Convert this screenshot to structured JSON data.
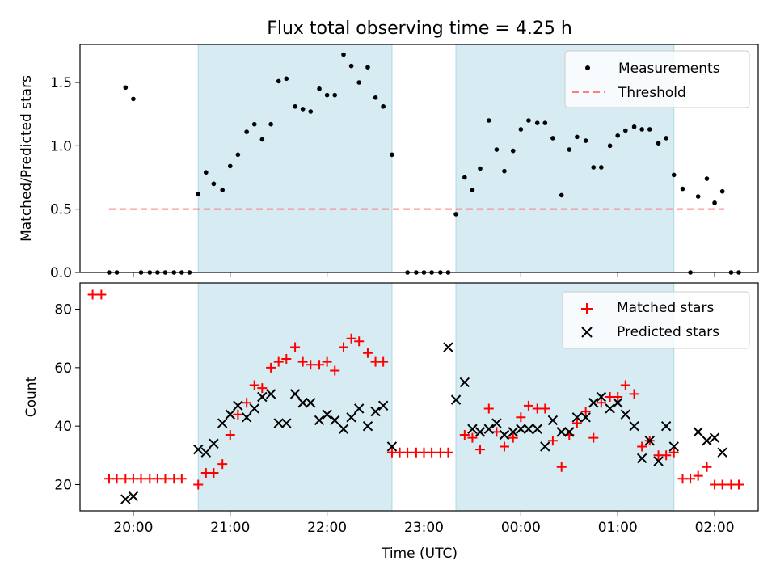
{
  "figure": {
    "title": "Flux total observing time = 4.25 h"
  },
  "chart_data": [
    {
      "type": "scatter",
      "panel": "top",
      "xlabel": "",
      "ylabel": "Matched/Predicted stars",
      "xlim_hours": [
        19.45,
        26.25
      ],
      "ylim": [
        0,
        1.8
      ],
      "yticks": [
        0.0,
        0.5,
        1.0,
        1.5
      ],
      "ytick_labels": [
        "0.0",
        "0.5",
        "1.0",
        "1.5"
      ],
      "xticks": [
        20,
        21,
        22,
        23,
        24,
        25,
        26
      ],
      "xtick_labels": [
        "",
        "",
        "",
        "",
        "",
        "",
        ""
      ],
      "shaded_intervals_hours": [
        [
          20.67,
          22.67
        ],
        [
          23.33,
          25.58
        ]
      ],
      "shade_color": "#add8e6",
      "legend": {
        "location": "top-right",
        "entries": [
          "Measurements",
          "Threshold"
        ]
      },
      "series": [
        {
          "name": "Measurements",
          "marker": "dot",
          "color": "#000000",
          "points": [
            [
              19.75,
              0
            ],
            [
              19.83,
              0
            ],
            [
              19.92,
              1.46
            ],
            [
              20.0,
              1.37
            ],
            [
              20.08,
              0
            ],
            [
              20.17,
              0
            ],
            [
              20.25,
              0
            ],
            [
              20.33,
              0
            ],
            [
              20.42,
              0
            ],
            [
              20.5,
              0
            ],
            [
              20.58,
              0
            ],
            [
              20.67,
              0.62
            ],
            [
              20.75,
              0.79
            ],
            [
              20.83,
              0.7
            ],
            [
              20.92,
              0.65
            ],
            [
              21.0,
              0.84
            ],
            [
              21.08,
              0.93
            ],
            [
              21.17,
              1.11
            ],
            [
              21.25,
              1.17
            ],
            [
              21.33,
              1.05
            ],
            [
              21.42,
              1.17
            ],
            [
              21.5,
              1.51
            ],
            [
              21.58,
              1.53
            ],
            [
              21.67,
              1.31
            ],
            [
              21.75,
              1.29
            ],
            [
              21.83,
              1.27
            ],
            [
              21.92,
              1.45
            ],
            [
              22.0,
              1.4
            ],
            [
              22.08,
              1.4
            ],
            [
              22.17,
              1.72
            ],
            [
              22.25,
              1.63
            ],
            [
              22.33,
              1.5
            ],
            [
              22.42,
              1.62
            ],
            [
              22.5,
              1.38
            ],
            [
              22.58,
              1.31
            ],
            [
              22.67,
              0.93
            ],
            [
              22.83,
              0
            ],
            [
              22.92,
              0
            ],
            [
              23.0,
              0
            ],
            [
              23.08,
              0
            ],
            [
              23.17,
              0
            ],
            [
              23.25,
              0
            ],
            [
              23.33,
              0.46
            ],
            [
              23.42,
              0.75
            ],
            [
              23.5,
              0.65
            ],
            [
              23.58,
              0.82
            ],
            [
              23.67,
              1.2
            ],
            [
              23.75,
              0.97
            ],
            [
              23.83,
              0.8
            ],
            [
              23.92,
              0.96
            ],
            [
              24.0,
              1.13
            ],
            [
              24.08,
              1.2
            ],
            [
              24.17,
              1.18
            ],
            [
              24.25,
              1.18
            ],
            [
              24.33,
              1.06
            ],
            [
              24.42,
              0.61
            ],
            [
              24.5,
              0.97
            ],
            [
              24.58,
              1.07
            ],
            [
              24.67,
              1.04
            ],
            [
              24.75,
              0.83
            ],
            [
              24.83,
              0.83
            ],
            [
              24.92,
              1.0
            ],
            [
              25.0,
              1.08
            ],
            [
              25.08,
              1.12
            ],
            [
              25.17,
              1.15
            ],
            [
              25.25,
              1.13
            ],
            [
              25.33,
              1.13
            ],
            [
              25.42,
              1.02
            ],
            [
              25.5,
              1.06
            ],
            [
              25.58,
              0.77
            ],
            [
              25.67,
              0.66
            ],
            [
              25.75,
              0
            ],
            [
              25.83,
              0.6
            ],
            [
              25.92,
              0.74
            ],
            [
              26.0,
              0.55
            ],
            [
              26.08,
              0.64
            ],
            [
              26.17,
              0
            ],
            [
              26.25,
              0
            ]
          ]
        },
        {
          "name": "Threshold",
          "style": "dashed",
          "color": "#ff7f7f",
          "points": [
            [
              19.75,
              0.5
            ],
            [
              26.1,
              0.5
            ]
          ]
        }
      ]
    },
    {
      "type": "scatter",
      "panel": "bottom",
      "xlabel": "Time (UTC)",
      "ylabel": "Count",
      "xlim_hours": [
        19.45,
        26.25
      ],
      "ylim": [
        11,
        89
      ],
      "yticks": [
        20,
        40,
        60,
        80
      ],
      "ytick_labels": [
        "20",
        "40",
        "60",
        "80"
      ],
      "xticks": [
        20,
        21,
        22,
        23,
        24,
        25,
        26
      ],
      "xtick_labels": [
        "20:00",
        "21:00",
        "22:00",
        "23:00",
        "00:00",
        "01:00",
        "02:00"
      ],
      "shaded_intervals_hours": [
        [
          20.67,
          22.67
        ],
        [
          23.33,
          25.58
        ]
      ],
      "shade_color": "#add8e6",
      "legend": {
        "location": "top-right",
        "entries": [
          "Matched stars",
          "Predicted stars"
        ]
      },
      "series": [
        {
          "name": "Matched stars",
          "marker": "plus",
          "color": "#ff0000",
          "points": [
            [
              19.58,
              85
            ],
            [
              19.67,
              85
            ],
            [
              19.75,
              22
            ],
            [
              19.83,
              22
            ],
            [
              19.92,
              22
            ],
            [
              20.0,
              22
            ],
            [
              20.08,
              22
            ],
            [
              20.17,
              22
            ],
            [
              20.25,
              22
            ],
            [
              20.33,
              22
            ],
            [
              20.42,
              22
            ],
            [
              20.5,
              22
            ],
            [
              20.67,
              20
            ],
            [
              20.75,
              24
            ],
            [
              20.83,
              24
            ],
            [
              20.92,
              27
            ],
            [
              21.0,
              37
            ],
            [
              21.08,
              44
            ],
            [
              21.17,
              48
            ],
            [
              21.25,
              54
            ],
            [
              21.33,
              53
            ],
            [
              21.42,
              60
            ],
            [
              21.5,
              62
            ],
            [
              21.58,
              63
            ],
            [
              21.67,
              67
            ],
            [
              21.75,
              62
            ],
            [
              21.83,
              61
            ],
            [
              21.92,
              61
            ],
            [
              22.0,
              62
            ],
            [
              22.08,
              59
            ],
            [
              22.17,
              67
            ],
            [
              22.25,
              70
            ],
            [
              22.33,
              69
            ],
            [
              22.42,
              65
            ],
            [
              22.5,
              62
            ],
            [
              22.58,
              62
            ],
            [
              22.67,
              31
            ],
            [
              22.75,
              31
            ],
            [
              22.83,
              31
            ],
            [
              22.92,
              31
            ],
            [
              23.0,
              31
            ],
            [
              23.08,
              31
            ],
            [
              23.17,
              31
            ],
            [
              23.25,
              31
            ],
            [
              23.42,
              37
            ],
            [
              23.5,
              36
            ],
            [
              23.58,
              32
            ],
            [
              23.67,
              46
            ],
            [
              23.75,
              38
            ],
            [
              23.83,
              33
            ],
            [
              23.92,
              36
            ],
            [
              24.0,
              43
            ],
            [
              24.08,
              47
            ],
            [
              24.17,
              46
            ],
            [
              24.25,
              46
            ],
            [
              24.33,
              35
            ],
            [
              24.42,
              26
            ],
            [
              24.5,
              37
            ],
            [
              24.58,
              41
            ],
            [
              24.67,
              45
            ],
            [
              24.75,
              36
            ],
            [
              24.83,
              48
            ],
            [
              24.92,
              50
            ],
            [
              25.0,
              50
            ],
            [
              25.08,
              54
            ],
            [
              25.17,
              51
            ],
            [
              25.25,
              33
            ],
            [
              25.33,
              35
            ],
            [
              25.42,
              30
            ],
            [
              25.5,
              30
            ],
            [
              25.58,
              31
            ],
            [
              25.67,
              22
            ],
            [
              25.75,
              22
            ],
            [
              25.83,
              23
            ],
            [
              25.92,
              26
            ],
            [
              26.0,
              20
            ],
            [
              26.08,
              20
            ],
            [
              26.17,
              20
            ],
            [
              26.25,
              20
            ]
          ]
        },
        {
          "name": "Predicted stars",
          "marker": "x",
          "color": "#000000",
          "points": [
            [
              19.92,
              15
            ],
            [
              20.0,
              16
            ],
            [
              20.67,
              32
            ],
            [
              20.75,
              31
            ],
            [
              20.83,
              34
            ],
            [
              20.92,
              41
            ],
            [
              21.0,
              44
            ],
            [
              21.08,
              47
            ],
            [
              21.17,
              43
            ],
            [
              21.25,
              46
            ],
            [
              21.33,
              50
            ],
            [
              21.42,
              51
            ],
            [
              21.5,
              41
            ],
            [
              21.58,
              41
            ],
            [
              21.67,
              51
            ],
            [
              21.75,
              48
            ],
            [
              21.83,
              48
            ],
            [
              21.92,
              42
            ],
            [
              22.0,
              44
            ],
            [
              22.08,
              42
            ],
            [
              22.17,
              39
            ],
            [
              22.25,
              43
            ],
            [
              22.33,
              46
            ],
            [
              22.42,
              40
            ],
            [
              22.5,
              45
            ],
            [
              22.58,
              47
            ],
            [
              22.67,
              33
            ],
            [
              23.25,
              67
            ],
            [
              23.33,
              49
            ],
            [
              23.42,
              55
            ],
            [
              23.5,
              39
            ],
            [
              23.58,
              38
            ],
            [
              23.67,
              39
            ],
            [
              23.75,
              41
            ],
            [
              23.83,
              37
            ],
            [
              23.92,
              38
            ],
            [
              24.0,
              39
            ],
            [
              24.08,
              39
            ],
            [
              24.17,
              39
            ],
            [
              24.25,
              33
            ],
            [
              24.33,
              42
            ],
            [
              24.42,
              38
            ],
            [
              24.5,
              38
            ],
            [
              24.58,
              43
            ],
            [
              24.67,
              43
            ],
            [
              24.75,
              48
            ],
            [
              24.83,
              50
            ],
            [
              24.92,
              46
            ],
            [
              25.0,
              48
            ],
            [
              25.08,
              44
            ],
            [
              25.17,
              40
            ],
            [
              25.25,
              29
            ],
            [
              25.33,
              35
            ],
            [
              25.42,
              28
            ],
            [
              25.5,
              40
            ],
            [
              25.58,
              33
            ],
            [
              25.83,
              38
            ],
            [
              25.92,
              35
            ],
            [
              26.0,
              36
            ],
            [
              26.08,
              31
            ]
          ]
        }
      ]
    }
  ]
}
